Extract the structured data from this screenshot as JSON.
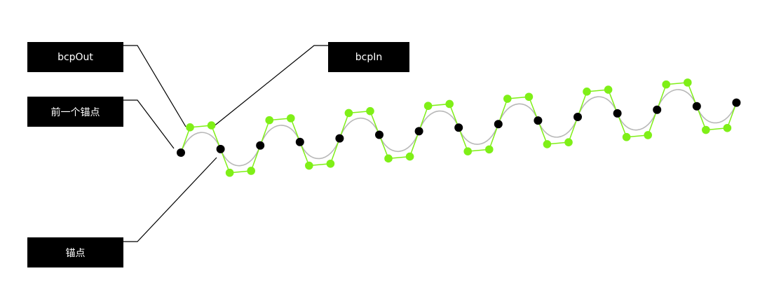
{
  "labels": {
    "bcp_out": "bcpOut",
    "bcp_in": "bcpIn",
    "previous_anchor": "前一个锚点",
    "anchor": "锚点"
  },
  "colors": {
    "anchor_point": "#000000",
    "control_point": "#7fef17",
    "handle_line": "#7fef17",
    "curve": "#b8b8b8",
    "leader_line": "#000000",
    "label_background": "#000000",
    "label_text": "#ffffff"
  },
  "diagram": {
    "anchor_count": 15,
    "control_points_per_segment": 2
  }
}
